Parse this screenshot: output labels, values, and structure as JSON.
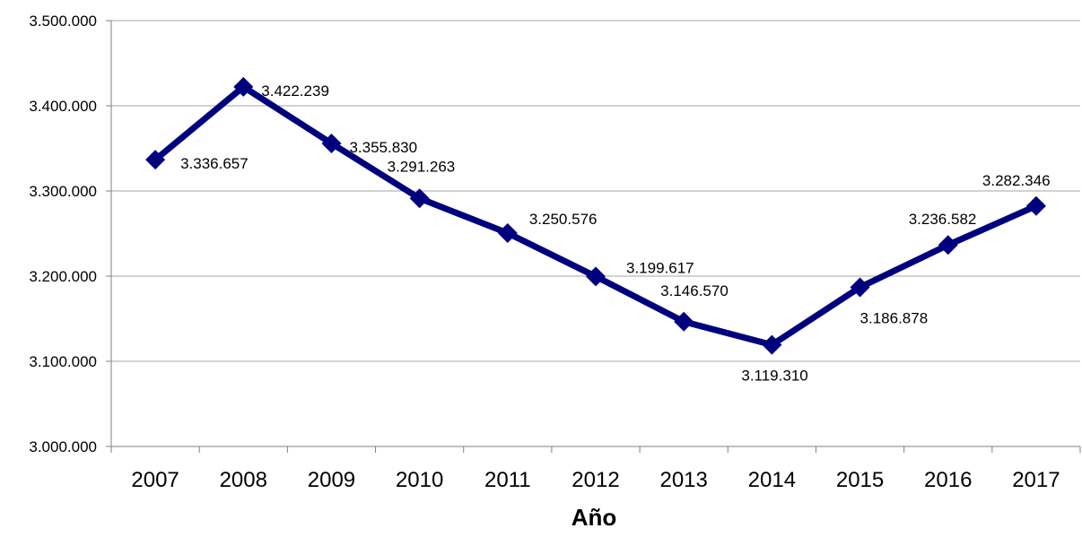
{
  "chart_data": {
    "type": "line",
    "title": "",
    "xlabel": "Año",
    "ylabel": "",
    "x": [
      "2007",
      "2008",
      "2009",
      "2010",
      "2011",
      "2012",
      "2013",
      "2014",
      "2015",
      "2016",
      "2017"
    ],
    "series": [
      {
        "values": [
          3336657,
          3422239,
          3355830,
          3291263,
          3250576,
          3199617,
          3146570,
          3119310,
          3186878,
          3236582,
          3282346
        ],
        "labels": [
          "3.336.657",
          "3.422.239",
          "3.355.830",
          "3.291.263",
          "3.250.576",
          "3.199.617",
          "3.146.570",
          "3.119.310",
          "3.186.878",
          "3.236.582",
          "3.282.346"
        ],
        "color": "#00007f",
        "marker": "diamond"
      }
    ],
    "ylim": [
      3000000,
      3500000
    ],
    "yticks": [
      3000000,
      3100000,
      3200000,
      3300000,
      3400000,
      3500000
    ],
    "ytick_labels": [
      "3.000.000",
      "3.100.000",
      "3.200.000",
      "3.300.000",
      "3.400.000",
      "3.500.000"
    ],
    "grid": true,
    "legend": "none"
  }
}
